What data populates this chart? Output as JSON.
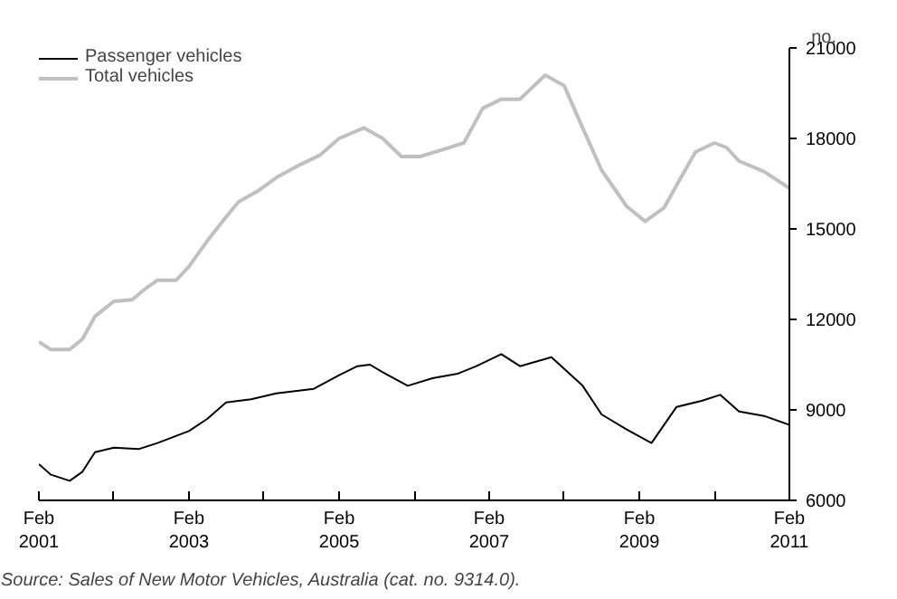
{
  "chart_data": {
    "type": "line",
    "ylabel": "no.",
    "annotations": [
      "Source: Sales of New Motor Vehicles, Australia (cat. no. 9314.0)."
    ],
    "xlim": [
      "2001-02",
      "2011-02"
    ],
    "xticks": [
      {
        "value": "2001-02",
        "label": "Feb\n2001"
      },
      {
        "value": "2002-02",
        "label": null
      },
      {
        "value": "2003-02",
        "label": "Feb\n2003"
      },
      {
        "value": "2004-02",
        "label": null
      },
      {
        "value": "2005-02",
        "label": "Feb\n2005"
      },
      {
        "value": "2006-02",
        "label": null
      },
      {
        "value": "2007-02",
        "label": "Feb\n2007"
      },
      {
        "value": "2008-02",
        "label": null
      },
      {
        "value": "2009-02",
        "label": "Feb\n2009"
      },
      {
        "value": "2010-02",
        "label": null
      },
      {
        "value": "2011-02",
        "label": "Feb\n2011"
      }
    ],
    "ylim": [
      6000,
      21000
    ],
    "yticks": [
      6000,
      9000,
      12000,
      15000,
      18000,
      21000
    ],
    "grid": false,
    "legend": "top left",
    "line_style": "solid",
    "series": [
      {
        "name": "Passenger vehicles",
        "color": "#000000",
        "x": [
          "2001-02",
          "2001-04",
          "2001-07",
          "2001-09",
          "2001-11",
          "2002-02",
          "2002-06",
          "2002-09",
          "2003-02",
          "2003-05",
          "2003-08",
          "2003-12",
          "2004-04",
          "2004-10",
          "2005-02",
          "2005-05",
          "2005-07",
          "2005-09",
          "2006-01",
          "2006-05",
          "2006-09",
          "2006-12",
          "2007-04",
          "2007-07",
          "2007-12",
          "2008-05",
          "2008-08",
          "2008-12",
          "2009-04",
          "2009-08",
          "2009-12",
          "2010-03",
          "2010-06",
          "2010-10",
          "2011-02"
        ],
        "values": [
          7200,
          6850,
          6650,
          6950,
          7600,
          7750,
          7700,
          7900,
          8300,
          8700,
          9250,
          9350,
          9550,
          9700,
          10150,
          10450,
          10500,
          10250,
          9800,
          10050,
          10200,
          10450,
          10850,
          10450,
          10750,
          9800,
          8850,
          8350,
          7900,
          9100,
          9300,
          9500,
          8950,
          8800,
          8500
        ]
      },
      {
        "name": "Total vehicles",
        "color": "#c0c0c0",
        "x": [
          "2001-02",
          "2001-04",
          "2001-07",
          "2001-09",
          "2001-11",
          "2002-02",
          "2002-05",
          "2002-07",
          "2002-09",
          "2002-12",
          "2003-02",
          "2003-05",
          "2003-08",
          "2003-10",
          "2004-01",
          "2004-04",
          "2004-08",
          "2004-11",
          "2005-02",
          "2005-06",
          "2005-09",
          "2005-12",
          "2006-03",
          "2006-07",
          "2006-10",
          "2007-01",
          "2007-04",
          "2007-07",
          "2007-11",
          "2008-02",
          "2008-05",
          "2008-08",
          "2008-12",
          "2009-03",
          "2009-06",
          "2009-08",
          "2009-11",
          "2010-02",
          "2010-04",
          "2010-06",
          "2010-10",
          "2011-02"
        ],
        "values": [
          11250,
          11000,
          11000,
          11350,
          12100,
          12600,
          12650,
          13000,
          13300,
          13300,
          13750,
          14600,
          15400,
          15900,
          16250,
          16700,
          17150,
          17450,
          18000,
          18350,
          18000,
          17400,
          17400,
          17650,
          17850,
          19000,
          19300,
          19300,
          20100,
          19750,
          18350,
          16950,
          15750,
          15250,
          15700,
          16450,
          17550,
          17850,
          17700,
          17250,
          16900,
          16350
        ]
      }
    ]
  }
}
